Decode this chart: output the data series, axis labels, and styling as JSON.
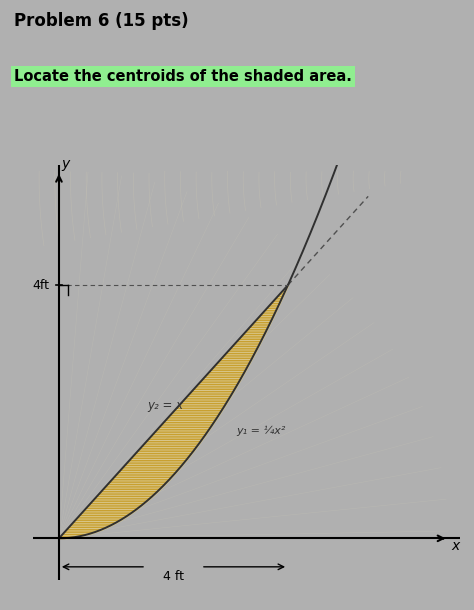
{
  "title": "Problem 6 (15 pts)",
  "subtitle": "Locate the centroids of the shaded area.",
  "subtitle_bg": "#90EE90",
  "x_max": 4,
  "y_max": 4,
  "x_label": "x",
  "y_label": "y",
  "x_annotation": "4 ft",
  "y_annotation": "4ft",
  "curve1_label": "y₂ = x",
  "curve2_label": "y₁ = ¼x²",
  "shaded_color": "#e8d080",
  "shaded_alpha": 0.75,
  "fig_bg": "#b0b0b0",
  "plot_bg": "#e8e4d8",
  "figsize": [
    4.74,
    6.1
  ],
  "dpi": 100
}
